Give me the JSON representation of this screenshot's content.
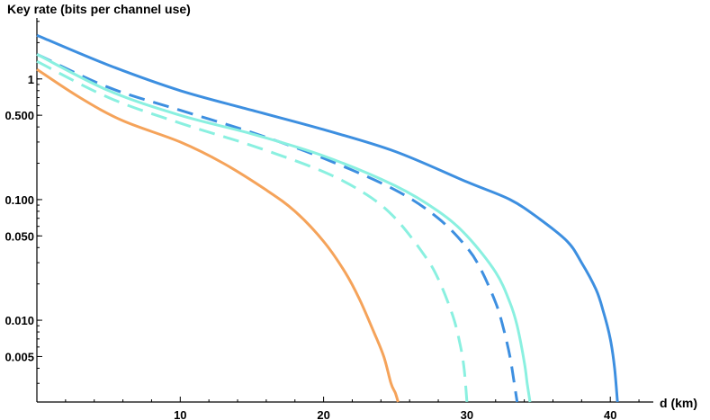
{
  "chart_data": {
    "type": "line",
    "title": "",
    "xlabel": "d (km)",
    "ylabel": "Key rate (bits per channel use)",
    "xlim": [
      0,
      43
    ],
    "ylim": [
      0.0021,
      3.2
    ],
    "yscale": "log",
    "grid": false,
    "xticks": [
      10,
      20,
      30,
      40
    ],
    "xtick_labels": [
      "10",
      "20",
      "30",
      "40"
    ],
    "yticks": [
      0.005,
      0.01,
      0.05,
      0.1,
      0.5,
      1
    ],
    "ytick_labels": [
      "0.005",
      "0.010",
      "0.050",
      "0.100",
      "0.500",
      "1"
    ],
    "series": [
      {
        "color": "#3d8fe0",
        "dash": "solid",
        "x": [
          0,
          5,
          10,
          15,
          20,
          25,
          30,
          33,
          35,
          37,
          38,
          39,
          39.5,
          40,
          40.3,
          40.5
        ],
        "y": [
          2.3,
          1.3,
          0.8,
          0.55,
          0.38,
          0.25,
          0.14,
          0.1,
          0.07,
          0.045,
          0.03,
          0.018,
          0.012,
          0.007,
          0.004,
          0.0021
        ]
      },
      {
        "color": "#3d8fe0",
        "dash": "dashed",
        "x": [
          0,
          5,
          10,
          15,
          20,
          25,
          28,
          30,
          31,
          32,
          32.5,
          33,
          33.3,
          33.5
        ],
        "y": [
          1.6,
          0.85,
          0.55,
          0.36,
          0.22,
          0.12,
          0.07,
          0.04,
          0.026,
          0.014,
          0.009,
          0.005,
          0.003,
          0.0021
        ]
      },
      {
        "color": "#8af0e0",
        "dash": "solid",
        "x": [
          0,
          5,
          10,
          15,
          20,
          25,
          28,
          30,
          32,
          33,
          33.5,
          34,
          34.2,
          34.4
        ],
        "y": [
          1.6,
          0.8,
          0.5,
          0.35,
          0.23,
          0.13,
          0.08,
          0.05,
          0.025,
          0.014,
          0.009,
          0.0045,
          0.003,
          0.0021
        ]
      },
      {
        "color": "#8af0e0",
        "dash": "dashed",
        "x": [
          0,
          5,
          10,
          15,
          20,
          23,
          25,
          27,
          28,
          29,
          29.5,
          29.8,
          30
        ],
        "y": [
          1.4,
          0.7,
          0.43,
          0.28,
          0.17,
          0.11,
          0.07,
          0.035,
          0.022,
          0.011,
          0.0065,
          0.004,
          0.0021
        ]
      },
      {
        "color": "#f5a35a",
        "dash": "solid",
        "x": [
          0,
          3,
          6,
          10,
          13,
          16,
          18,
          20,
          21.5,
          22.5,
          23.5,
          24.2,
          24.7,
          25,
          25.2
        ],
        "y": [
          1.2,
          0.7,
          0.45,
          0.3,
          0.2,
          0.12,
          0.08,
          0.045,
          0.025,
          0.015,
          0.008,
          0.005,
          0.003,
          0.0025,
          0.0021
        ]
      }
    ]
  }
}
